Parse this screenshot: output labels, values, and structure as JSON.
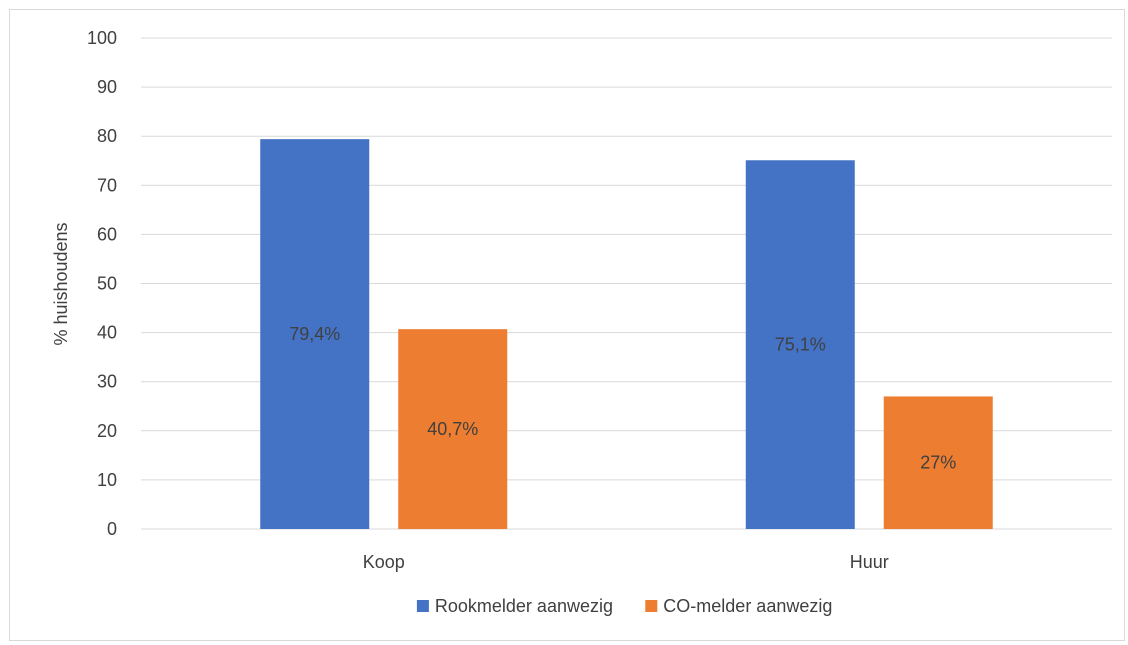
{
  "chart_data": {
    "type": "bar",
    "categories": [
      "Koop",
      "Huur"
    ],
    "series": [
      {
        "name": "Rookmelder aanwezig",
        "color": "#4472c4",
        "values": [
          79.4,
          75.1
        ],
        "labels": [
          "79,4%",
          "75,1%"
        ]
      },
      {
        "name": "CO-melder aanwezig",
        "color": "#ed7d31",
        "values": [
          40.7,
          27
        ],
        "labels": [
          "40,7%",
          "27%"
        ]
      }
    ],
    "ylabel": "% huishoudens",
    "xlabel": "",
    "ylim": [
      0,
      100
    ],
    "yticks": [
      0,
      10,
      20,
      30,
      40,
      50,
      60,
      70,
      80,
      90,
      100
    ],
    "grid": true,
    "legend_position": "bottom"
  }
}
